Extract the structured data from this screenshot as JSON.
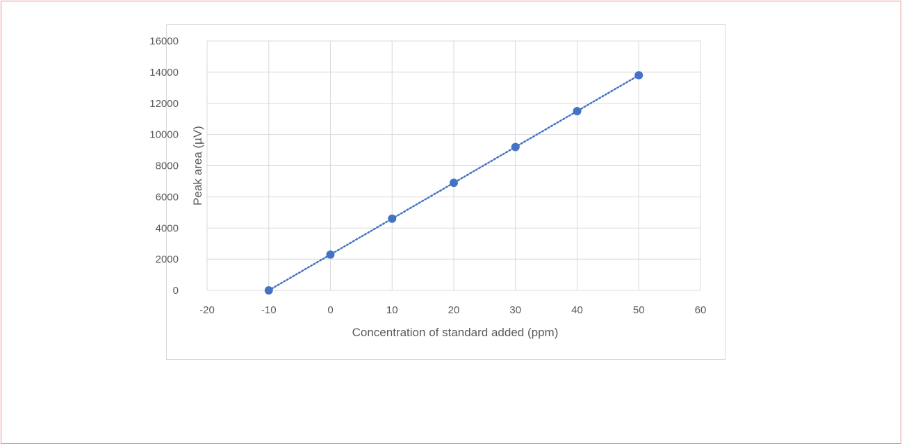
{
  "chart_data": {
    "type": "scatter",
    "title": "",
    "xlabel": "Concentration of standard added (ppm)",
    "ylabel": "Peak area (µV)",
    "xlim": [
      -20,
      60
    ],
    "ylim": [
      0,
      16000
    ],
    "xticks": [
      -20,
      -10,
      0,
      10,
      20,
      30,
      40,
      50,
      60
    ],
    "yticks": [
      0,
      2000,
      4000,
      6000,
      8000,
      10000,
      12000,
      14000,
      16000
    ],
    "grid": true,
    "series": [
      {
        "x": [
          -10,
          0,
          10,
          20,
          30,
          40,
          50
        ],
        "y": [
          0,
          2300,
          4600,
          6900,
          9200,
          11500,
          13800
        ],
        "color": "#4472c4",
        "trendline": "linear",
        "trendline_style": "dotted"
      }
    ]
  }
}
